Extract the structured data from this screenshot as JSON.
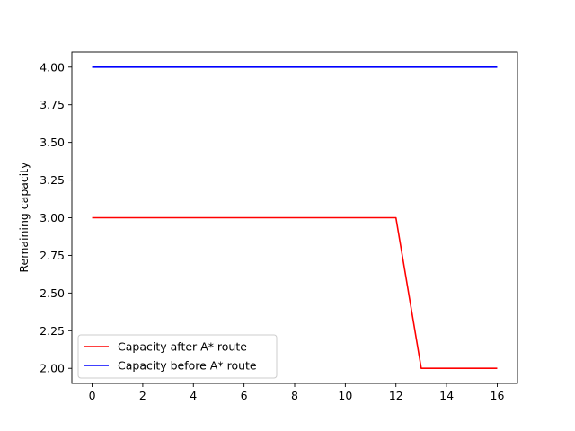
{
  "chart_data": {
    "type": "line",
    "title": "",
    "xlabel": "",
    "ylabel": "Remaining capacity",
    "xlim": [
      -0.8,
      16.8
    ],
    "ylim": [
      1.9,
      4.1
    ],
    "xticks": [
      0,
      2,
      4,
      6,
      8,
      10,
      12,
      14,
      16
    ],
    "yticks": [
      2.0,
      2.25,
      2.5,
      2.75,
      3.0,
      3.25,
      3.5,
      3.75,
      4.0
    ],
    "grid": false,
    "legend_position": "lower-left",
    "x": [
      0,
      1,
      2,
      3,
      4,
      5,
      6,
      7,
      8,
      9,
      10,
      11,
      12,
      13,
      14,
      15,
      16
    ],
    "series": [
      {
        "name": "Capacity after A* route",
        "color": "#ff0000",
        "values": [
          3,
          3,
          3,
          3,
          3,
          3,
          3,
          3,
          3,
          3,
          3,
          3,
          3,
          2,
          2,
          2,
          2
        ]
      },
      {
        "name": "Capacity before A* route",
        "color": "#0000ff",
        "values": [
          4,
          4,
          4,
          4,
          4,
          4,
          4,
          4,
          4,
          4,
          4,
          4,
          4,
          4,
          4,
          4,
          4
        ]
      }
    ]
  }
}
